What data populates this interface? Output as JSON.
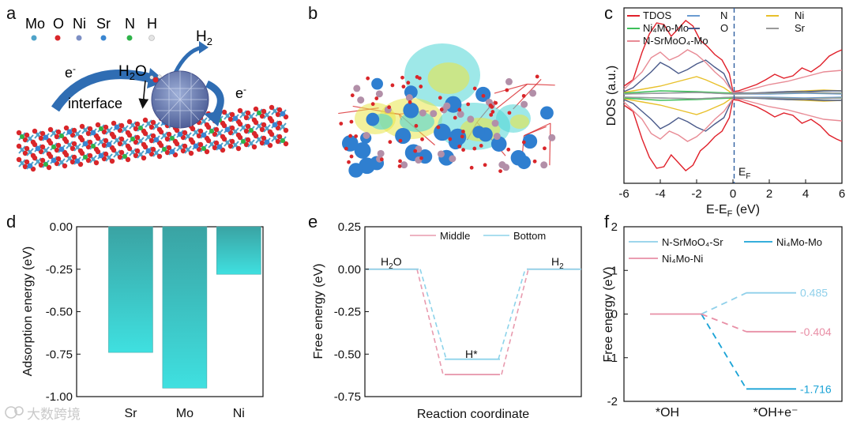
{
  "panel_labels": [
    "a",
    "b",
    "c",
    "d",
    "e",
    "f"
  ],
  "panel_a": {
    "elements": [
      {
        "symbol": "Mo",
        "color": "#4fa3c9"
      },
      {
        "symbol": "O",
        "color": "#d9262a"
      },
      {
        "symbol": "Ni",
        "color": "#7d8fc4"
      },
      {
        "symbol": "Sr",
        "color": "#3a86d1"
      },
      {
        "symbol": "N",
        "color": "#2fb34a"
      },
      {
        "symbol": "H",
        "color": "#d9d9d9"
      }
    ],
    "labels": {
      "h2": "H",
      "h2_sub": "2",
      "h2o": "H",
      "h2o_sub": "2",
      "h2o_tail": "O",
      "electron": "e",
      "electron_sup": "-",
      "interface": "interface"
    },
    "accent_color": "#2f6db3"
  },
  "panel_b": {
    "colors": {
      "iso_yellow": "#e8e54a",
      "iso_cyan": "#4fd6d6",
      "atom_blue": "#2f7fd0",
      "atom_mauve": "#b28fa8",
      "atom_red": "#d9262a"
    }
  },
  "chart_data": [
    {
      "panel": "c",
      "type": "line",
      "xlabel_parts": [
        "E-E",
        "F",
        " (eV)"
      ],
      "ylabel": "DOS (a.u.)",
      "xlim": [
        -6,
        6
      ],
      "xticks": [
        -6,
        -4,
        -2,
        0,
        2,
        4,
        6
      ],
      "fermi_label": [
        "E",
        "F"
      ],
      "series": [
        {
          "name": "TDOS",
          "color": "#e0202a",
          "x": [
            -6,
            -5.5,
            -5,
            -4.6,
            -4.2,
            -3.8,
            -3.4,
            -3,
            -2.6,
            -2.2,
            -1.8,
            -1.4,
            -1,
            -0.6,
            -0.2,
            0,
            0.3,
            0.8,
            1.3,
            1.8,
            2.3,
            2.8,
            3.3,
            3.8,
            4.3,
            4.8,
            5.3,
            5.7,
            6
          ],
          "y": [
            0.12,
            0.2,
            0.55,
            0.78,
            0.92,
            0.9,
            0.75,
            0.85,
            0.95,
            0.88,
            0.7,
            0.62,
            0.52,
            0.45,
            0.28,
            0.05,
            0.06,
            0.1,
            0.14,
            0.2,
            0.27,
            0.22,
            0.25,
            0.35,
            0.3,
            0.38,
            0.5,
            0.55,
            0.58
          ]
        },
        {
          "name": "N",
          "color": "#6b9bd1",
          "x": [
            -6,
            -4,
            -2,
            0,
            2,
            4,
            6
          ],
          "y": [
            0.02,
            0.03,
            0.04,
            0.02,
            0.02,
            0.03,
            0.02
          ]
        },
        {
          "name": "Ni",
          "color": "#e8c02a",
          "x": [
            -6,
            -5,
            -4,
            -3,
            -2,
            -1.5,
            -1,
            -0.5,
            0,
            1,
            2,
            3,
            4,
            5,
            6
          ],
          "y": [
            0.04,
            0.08,
            0.12,
            0.18,
            0.24,
            0.2,
            0.15,
            0.1,
            0.02,
            0.03,
            0.04,
            0.05,
            0.06,
            0.07,
            0.06
          ]
        },
        {
          "name": "Ni₄Mo-Mo",
          "color": "#3dbf5a",
          "x": [
            -6,
            -4,
            -2,
            0,
            2,
            4,
            6
          ],
          "y": [
            0.03,
            0.06,
            0.05,
            0.03,
            0.03,
            0.04,
            0.03
          ]
        },
        {
          "name": "O",
          "color": "#4a5a8a",
          "x": [
            -6,
            -5.5,
            -5,
            -4.5,
            -4,
            -3.5,
            -3,
            -2.5,
            -2,
            -1.5,
            -1,
            -0.5,
            0,
            1,
            2,
            3,
            4,
            5,
            6
          ],
          "y": [
            0.05,
            0.1,
            0.2,
            0.3,
            0.42,
            0.36,
            0.28,
            0.33,
            0.4,
            0.45,
            0.36,
            0.28,
            0.03,
            0.03,
            0.04,
            0.05,
            0.05,
            0.06,
            0.06
          ]
        },
        {
          "name": "Sr",
          "color": "#9a9a9a",
          "x": [
            -6,
            -4,
            -2,
            0,
            2,
            4,
            6
          ],
          "y": [
            0.02,
            0.03,
            0.04,
            0.02,
            0.03,
            0.04,
            0.03
          ]
        },
        {
          "name": "N-SrMoO₄-Mo",
          "color": "#e88b95",
          "x": [
            -6,
            -5,
            -4.5,
            -4,
            -3.5,
            -3,
            -2.5,
            -2,
            -1.5,
            -1,
            -0.5,
            0,
            0.5,
            1,
            2,
            3,
            4,
            5,
            6
          ],
          "y": [
            0.08,
            0.3,
            0.48,
            0.55,
            0.45,
            0.5,
            0.58,
            0.52,
            0.42,
            0.3,
            0.2,
            0.04,
            0.05,
            0.08,
            0.14,
            0.18,
            0.24,
            0.3,
            0.32
          ]
        }
      ]
    },
    {
      "panel": "d",
      "type": "bar",
      "categories": [
        "Sr",
        "Mo",
        "Ni"
      ],
      "values": [
        -0.74,
        -0.95,
        -0.28
      ],
      "ylabel": "Adsorption energy (eV)",
      "ylim": [
        -1.0,
        0.0
      ],
      "yticks": [
        "0.00",
        "-0.25",
        "-0.50",
        "-0.75",
        "-1.00"
      ],
      "colors": {
        "top": "#3aa3a3",
        "bottom": "#3fe0e0"
      }
    },
    {
      "panel": "e",
      "type": "line",
      "xlabel": "Reaction coordinate",
      "ylabel": "Free energy (eV)",
      "ylim": [
        -0.75,
        0.25
      ],
      "yticks": [
        "0.25",
        "0.00",
        "-0.25",
        "-0.50",
        "-0.75"
      ],
      "series": [
        {
          "name": "Middle",
          "color": "#e89aae",
          "levels": [
            0.0,
            -0.62,
            0.0
          ]
        },
        {
          "name": "Bottom",
          "color": "#8dd3ea",
          "levels": [
            0.0,
            -0.53,
            0.0
          ]
        }
      ],
      "annotations": {
        "h2o": [
          "H",
          "2",
          "O"
        ],
        "h2": [
          "H",
          "2"
        ],
        "hstar": "H*"
      }
    },
    {
      "panel": "f",
      "type": "line",
      "ylabel": "Free energy (eV)",
      "ylim": [
        -2,
        2
      ],
      "yticks": [
        "2",
        "1",
        "0",
        "-1",
        "-2"
      ],
      "categories": [
        "*OH",
        "*OH+e⁻"
      ],
      "series": [
        {
          "name": "N-SrMoO₄-Sr",
          "color": "#8fd0ea",
          "start": 0.0,
          "end": 0.485,
          "label": "0.485"
        },
        {
          "name": "Ni₄Mo-Mo",
          "color": "#1aa3d6",
          "start": 0.0,
          "end": -1.716,
          "label": "-1.716"
        },
        {
          "name": "Ni₄Mo-Ni",
          "color": "#e88fa6",
          "start": 0.0,
          "end": -0.404,
          "label": "-0.404"
        }
      ]
    }
  ],
  "watermark": "大数跨境"
}
